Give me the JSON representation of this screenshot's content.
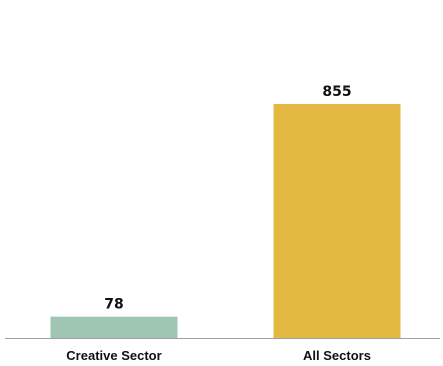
{
  "chart_data": {
    "type": "bar",
    "title": "",
    "xlabel": "",
    "ylabel": "",
    "categories": [
      "Creative Sector",
      "All Sectors"
    ],
    "values": [
      78,
      855
    ],
    "data_labels": [
      "78",
      "855"
    ],
    "colors": [
      "#9fc6b3",
      "#e3b843"
    ],
    "ylim": [
      0,
      1000
    ],
    "grid": false,
    "legend": "none"
  }
}
